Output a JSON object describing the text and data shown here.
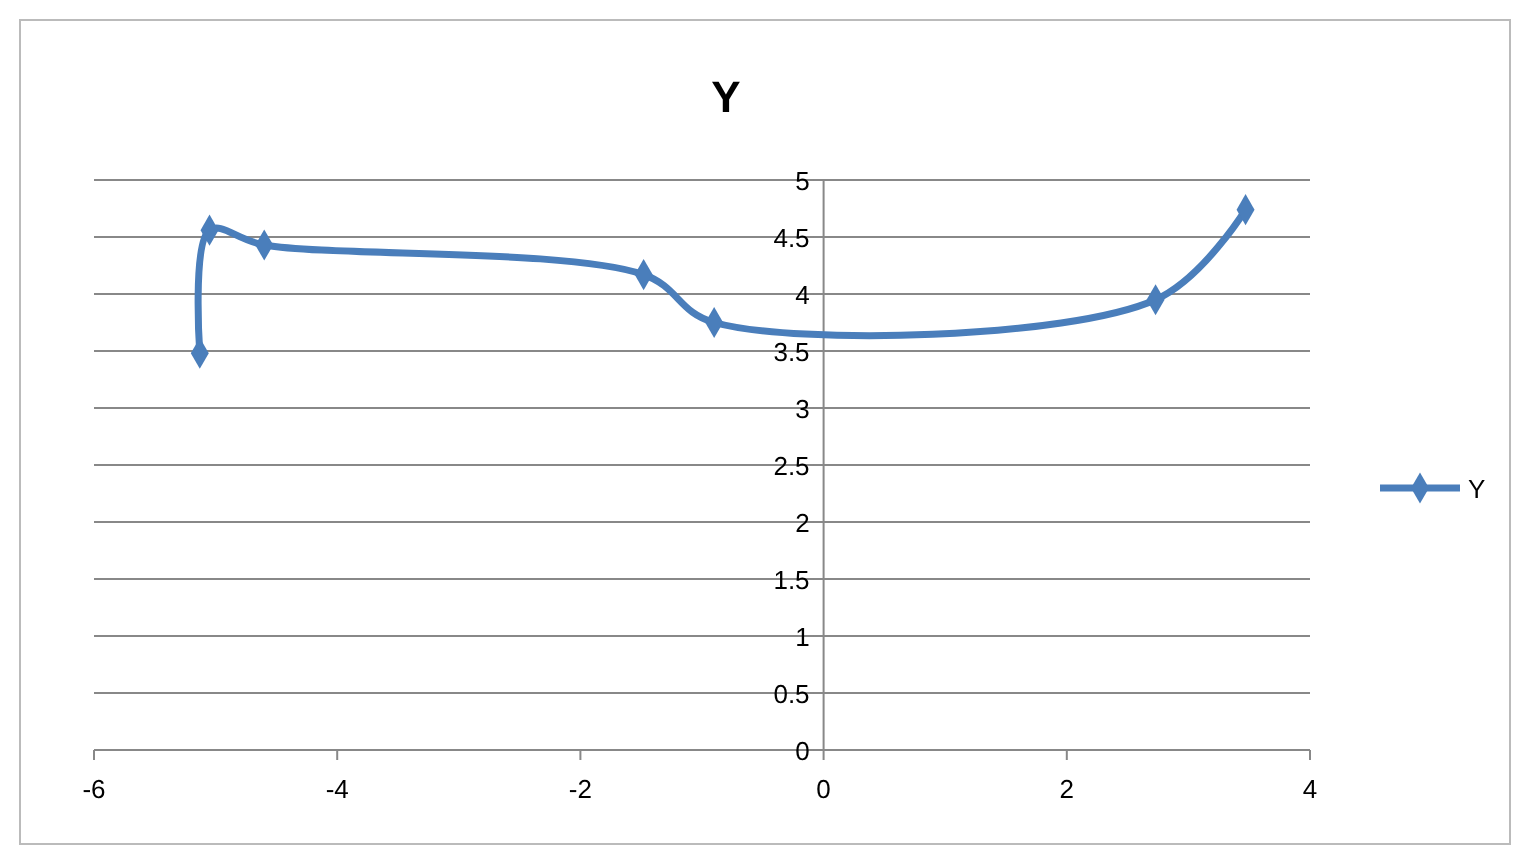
{
  "chart_data": {
    "type": "line",
    "title": "Y",
    "x": [
      -5.13,
      -5.05,
      -4.6,
      -1.48,
      -0.9,
      2.73,
      3.47
    ],
    "series": [
      {
        "name": "Y",
        "color": "#4a7ebb",
        "values": [
          3.48,
          4.56,
          4.43,
          4.17,
          3.75,
          3.95,
          4.74
        ]
      }
    ],
    "xlim": [
      -6,
      4
    ],
    "xticks": [
      -6,
      -4,
      -2,
      0,
      2,
      4
    ],
    "ylim": [
      0,
      5
    ],
    "yticks": [
      0,
      0.5,
      1,
      1.5,
      2,
      2.5,
      3,
      3.5,
      4,
      4.5,
      5
    ],
    "grid": "y",
    "legend": "right",
    "marker": "diamond",
    "line_style": "solid"
  }
}
